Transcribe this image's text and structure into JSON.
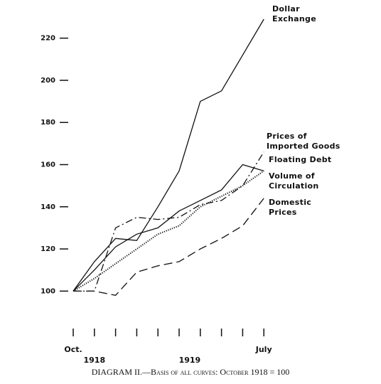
{
  "chart_data": {
    "type": "line",
    "title": "DIAGRAM II.—Basis of all curves: October 1918 = 100",
    "categories": [
      "Oct.",
      null,
      null,
      null,
      null,
      null,
      null,
      null,
      null,
      "July"
    ],
    "year_labels": [
      "1918",
      "1919"
    ],
    "ylim": [
      90,
      230
    ],
    "yticks": [
      100,
      120,
      140,
      160,
      180,
      200,
      220
    ],
    "grid": false,
    "series": [
      {
        "name": "Dollar Exchange",
        "color": "#111111",
        "dash": "solid",
        "values": [
          100,
          114,
          125,
          124,
          140,
          157,
          190,
          195,
          212,
          229
        ]
      },
      {
        "name": "Prices of Imported Goods",
        "color": "#111111",
        "dash": "dash-dot",
        "values": [
          100,
          100,
          130,
          135,
          134,
          135,
          141,
          143,
          150,
          166
        ]
      },
      {
        "name": "Floating Debt",
        "color": "#111111",
        "dash": "solid",
        "values": [
          100,
          110,
          121,
          127,
          130,
          138,
          143,
          148,
          160,
          157
        ]
      },
      {
        "name": "Volume of Circulation",
        "color": "#111111",
        "dash": "dotted",
        "values": [
          100,
          106,
          113,
          120,
          127,
          131,
          140,
          145,
          150,
          157
        ]
      },
      {
        "name": "Domestic Prices",
        "color": "#111111",
        "dash": "dashed",
        "values": [
          100,
          100,
          98,
          109,
          112,
          114,
          120,
          125,
          131,
          144
        ]
      }
    ]
  }
}
